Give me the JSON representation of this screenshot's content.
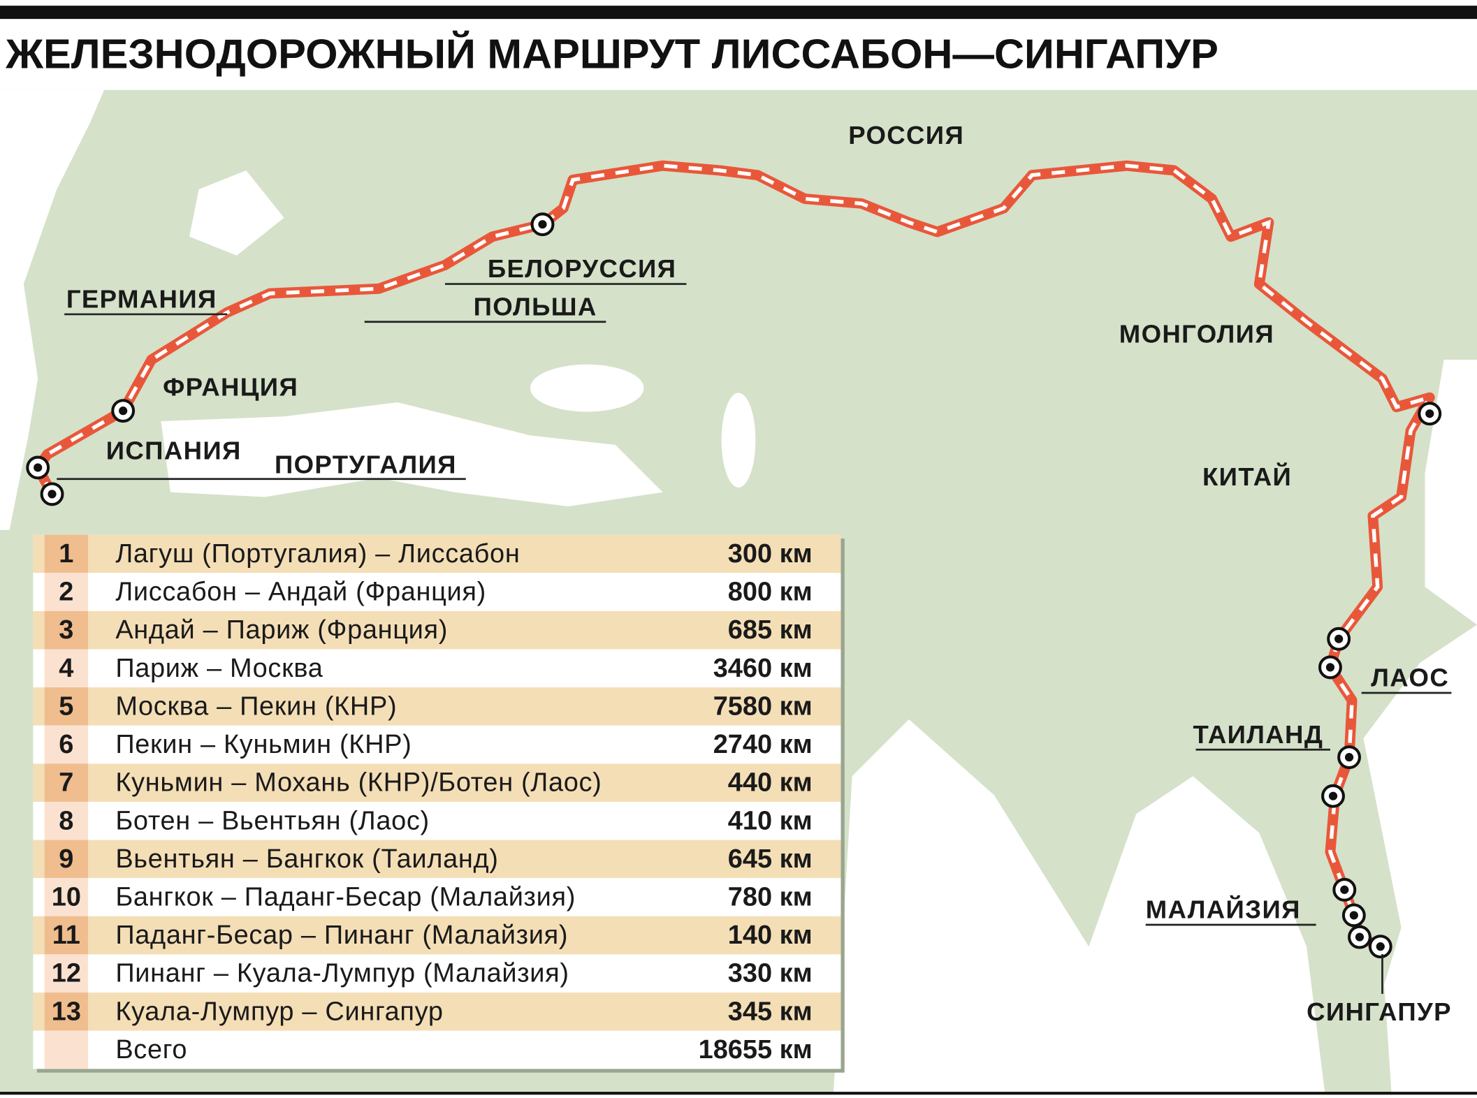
{
  "title": "ЖЕЛЕЗНОДОРОЖНЫЙ МАРШРУТ ЛИССАБОН—СИНГАПУР",
  "map_labels": [
    "РОССИЯ",
    "БЕЛОРУССИЯ",
    "ГЕРМАНИЯ",
    "ПОЛЬША",
    "МОНГОЛИЯ",
    "ФРАНЦИЯ",
    "ИСПАНИЯ",
    "ПОРТУГАЛИЯ",
    "КИТАЙ",
    "ЛАОС",
    "ТАИЛАНД",
    "МАЛАЙЗИЯ",
    "СИНГАПУР"
  ],
  "table": {
    "rows": [
      [
        "1",
        "Лагуш (Португалия) – Лиссабон",
        "300 км"
      ],
      [
        "2",
        "Лиссабон – Андай (Франция)",
        "800 км"
      ],
      [
        "3",
        "Андай – Париж (Франция)",
        "685 км"
      ],
      [
        "4",
        "Париж – Москва",
        "3460 км"
      ],
      [
        "5",
        "Москва – Пекин (КНР)",
        "7580 км"
      ],
      [
        "6",
        "Пекин – Куньмин (КНР)",
        "2740 км"
      ],
      [
        "7",
        "Куньмин – Мохань (КНР)/Ботен (Лаос)",
        "440 км"
      ],
      [
        "8",
        "Ботен – Вьентьян (Лаос)",
        "410 км"
      ],
      [
        "9",
        "Вьентьян – Бангкок (Таиланд)",
        "645 км"
      ],
      [
        "10",
        "Бангкок – Паданг-Бесар (Малайзия)",
        "780 км"
      ],
      [
        "11",
        "Паданг-Бесар – Пинанг (Малайзия)",
        "140 км"
      ],
      [
        "12",
        "Пинанг – Куала-Лумпур (Малайзия)",
        "330 км"
      ],
      [
        "13",
        "Куала-Лумпур – Сингапур",
        "345 км"
      ]
    ],
    "total": {
      "label": "Всего",
      "distance": "18655 км"
    }
  }
}
